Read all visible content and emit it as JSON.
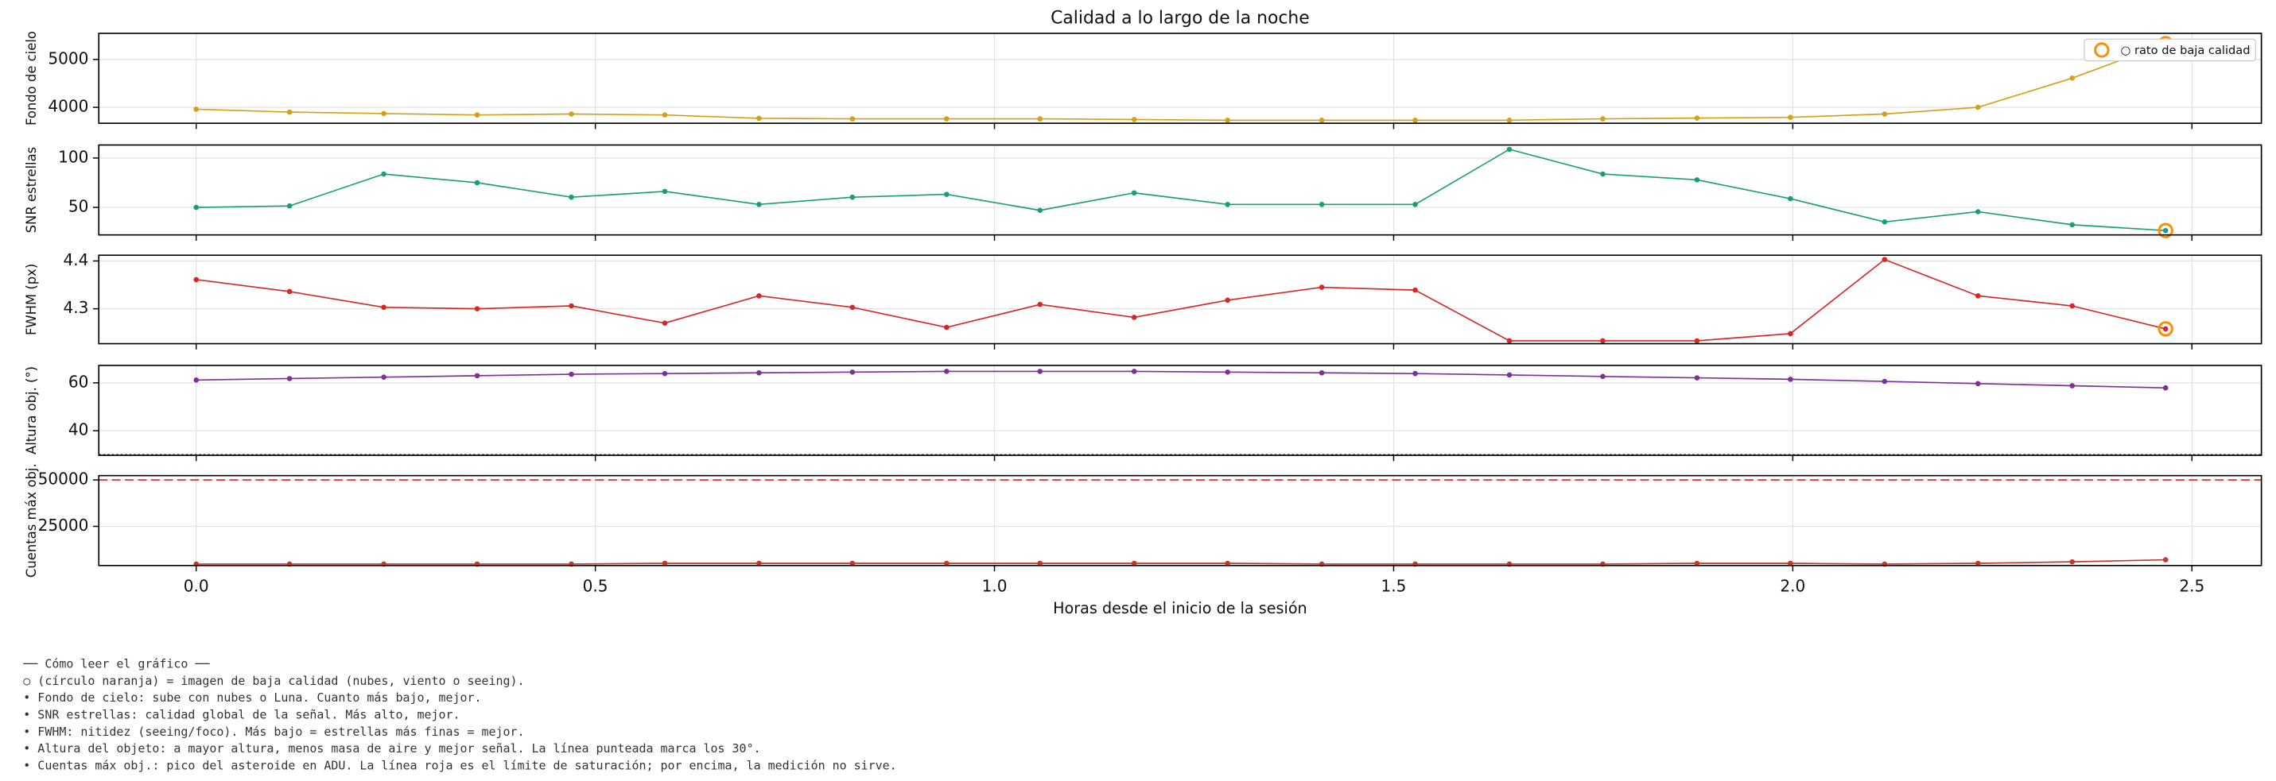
{
  "chart_data": [
    {
      "type": "line",
      "title": "Calidad a lo largo de la noche",
      "ylabel": "Fondo de cielo",
      "x": [
        0,
        0.117,
        0.235,
        0.352,
        0.47,
        0.587,
        0.705,
        0.822,
        0.94,
        1.057,
        1.175,
        1.292,
        1.41,
        1.527,
        1.645,
        1.762,
        1.88,
        1.997,
        2.115,
        2.232,
        2.35,
        2.467
      ],
      "values": [
        3960,
        3900,
        3870,
        3840,
        3860,
        3840,
        3770,
        3760,
        3760,
        3760,
        3745,
        3730,
        3730,
        3730,
        3730,
        3760,
        3775,
        3790,
        3860,
        4000,
        4610,
        5330
      ],
      "color": "#d4a017",
      "flagged_points": [
        21
      ],
      "flag_color": "#ff8c00",
      "legend": {
        "label": "○ rato de baja calidad",
        "loc": "upper right"
      },
      "xlim": [
        -0.122,
        2.587
      ],
      "xticks": [
        0,
        0.5,
        1,
        1.5,
        2,
        2.5
      ],
      "ylim": [
        3667,
        5545
      ],
      "yticks": [
        4000,
        5000
      ],
      "grid": true
    },
    {
      "type": "line",
      "ylabel": "SNR estrellas",
      "x": [
        0,
        0.117,
        0.235,
        0.352,
        0.47,
        0.587,
        0.705,
        0.822,
        0.94,
        1.057,
        1.175,
        1.292,
        1.41,
        1.527,
        1.645,
        1.762,
        1.88,
        1.997,
        2.115,
        2.232,
        2.35,
        2.467
      ],
      "values": [
        50,
        51.5,
        83.8,
        75,
        60.3,
        66.2,
        53,
        60.3,
        63.2,
        47,
        64.7,
        53,
        53,
        53,
        108.8,
        83.8,
        77.9,
        58.8,
        35.3,
        45.6,
        32.4,
        26.5
      ],
      "color": "#1b9e77",
      "flagged_points": [
        21
      ],
      "flag_color": "#ff8c00",
      "xlim": [
        -0.122,
        2.587
      ],
      "xticks": [
        0,
        0.5,
        1,
        1.5,
        2,
        2.5
      ],
      "ylim": [
        22.1,
        113.2
      ],
      "yticks": [
        50,
        100
      ],
      "grid": true
    },
    {
      "type": "line",
      "ylabel": "FWHM (px)",
      "x": [
        0,
        0.117,
        0.235,
        0.352,
        0.47,
        0.587,
        0.705,
        0.822,
        0.94,
        1.057,
        1.175,
        1.292,
        1.41,
        1.527,
        1.645,
        1.762,
        1.88,
        1.997,
        2.115,
        2.232,
        2.35,
        2.467
      ],
      "values": [
        4.361,
        4.336,
        4.303,
        4.3,
        4.306,
        4.27,
        4.327,
        4.303,
        4.261,
        4.309,
        4.282,
        4.318,
        4.345,
        4.339,
        4.233,
        4.233,
        4.233,
        4.248,
        4.403,
        4.327,
        4.306,
        4.258
      ],
      "color": "#d62728",
      "flagged_points": [
        21
      ],
      "flag_color": "#ff8c00",
      "xlim": [
        -0.122,
        2.587
      ],
      "xticks": [
        0,
        0.5,
        1,
        1.5,
        2,
        2.5
      ],
      "ylim": [
        4.227,
        4.412
      ],
      "yticks": [
        4.3,
        4.4
      ],
      "grid": true
    },
    {
      "type": "line",
      "ylabel": "Altura obj. (°)",
      "x": [
        0,
        0.117,
        0.235,
        0.352,
        0.47,
        0.587,
        0.705,
        0.822,
        0.94,
        1.057,
        1.175,
        1.292,
        1.41,
        1.527,
        1.645,
        1.762,
        1.88,
        1.997,
        2.115,
        2.232,
        2.35,
        2.467
      ],
      "values": [
        61.2,
        61.8,
        62.4,
        63,
        63.6,
        63.9,
        64.2,
        64.5,
        64.8,
        64.8,
        64.8,
        64.5,
        64.2,
        63.9,
        63.3,
        62.7,
        62.1,
        61.5,
        60.6,
        59.7,
        58.8,
        57.9
      ],
      "color": "#7b3294",
      "hline": {
        "value": 30,
        "color": "#555",
        "style": "dotted"
      },
      "xlim": [
        -0.122,
        2.587
      ],
      "xticks": [
        0,
        0.5,
        1,
        1.5,
        2,
        2.5
      ],
      "ylim": [
        29.7,
        67.3
      ],
      "yticks": [
        40,
        60
      ],
      "grid": true
    },
    {
      "type": "line",
      "ylabel": "Cuentas máx obj.",
      "xlabel": "Horas desde el inicio de la sesión",
      "x": [
        0,
        0.117,
        0.235,
        0.352,
        0.47,
        0.587,
        0.705,
        0.822,
        0.94,
        1.057,
        1.175,
        1.292,
        1.41,
        1.527,
        1.645,
        1.762,
        1.88,
        1.997,
        2.115,
        2.232,
        2.35,
        2.467
      ],
      "values": [
        4700,
        4700,
        4700,
        4700,
        4700,
        5100,
        5100,
        5100,
        5100,
        5100,
        5100,
        5100,
        4700,
        4700,
        4700,
        4700,
        5100,
        5100,
        4700,
        5100,
        5900,
        7000
      ],
      "color": "#c0392b",
      "hline": {
        "value": 50000,
        "color": "#d62728",
        "style": "dashed"
      },
      "xlim": [
        -0.122,
        2.587
      ],
      "xticks": [
        {
          "value": 0,
          "label": "0.0"
        },
        {
          "value": 0.5,
          "label": "0.5"
        },
        {
          "value": 1,
          "label": "1.0"
        },
        {
          "value": 1.5,
          "label": "1.5"
        },
        {
          "value": 2,
          "label": "2.0"
        },
        {
          "value": 2.5,
          "label": "2.5"
        }
      ],
      "ylim": [
        3906,
        52340
      ],
      "yticks": [
        25000,
        50000
      ],
      "grid": true
    }
  ],
  "notes": [
    "── Cómo leer el gráfico ──",
    "○ (círculo naranja) = imagen de baja calidad (nubes, viento o seeing).",
    "• Fondo de cielo: sube con nubes o Luna. Cuanto más bajo, mejor.",
    "• SNR estrellas: calidad global de la señal. Más alto, mejor.",
    "• FWHM: nitidez (seeing/foco). Más bajo = estrellas más finas = mejor.",
    "• Altura del objeto: a mayor altura, menos masa de aire y mejor señal. La línea punteada marca los 30°.",
    "• Cuentas máx obj.: pico del asteroide en ADU. La línea roja es el límite de saturación; por encima, la medición no sirve."
  ]
}
